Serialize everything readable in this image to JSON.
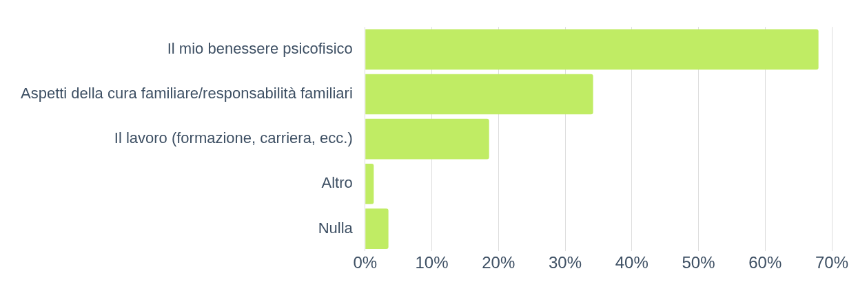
{
  "chart_data": {
    "type": "bar",
    "orientation": "horizontal",
    "categories": [
      "Il mio benessere psicofisico",
      "Aspetti della cura familiare/responsabilità familiari",
      "Il lavoro (formazione, carriera, ecc.)",
      "Altro",
      "Nulla"
    ],
    "values": [
      68,
      34.2,
      18.6,
      1.3,
      3.5
    ],
    "color": "#c0ec64",
    "xlim": [
      0,
      70
    ],
    "xticks": [
      {
        "value": 0,
        "label": "0%"
      },
      {
        "value": 10,
        "label": "10%"
      },
      {
        "value": 20,
        "label": "20%"
      },
      {
        "value": 30,
        "label": "30%"
      },
      {
        "value": 40,
        "label": "40%"
      },
      {
        "value": 50,
        "label": "50%"
      },
      {
        "value": 60,
        "label": "60%"
      },
      {
        "value": 70,
        "label": "70%"
      }
    ],
    "grid": "x",
    "legend": false
  }
}
